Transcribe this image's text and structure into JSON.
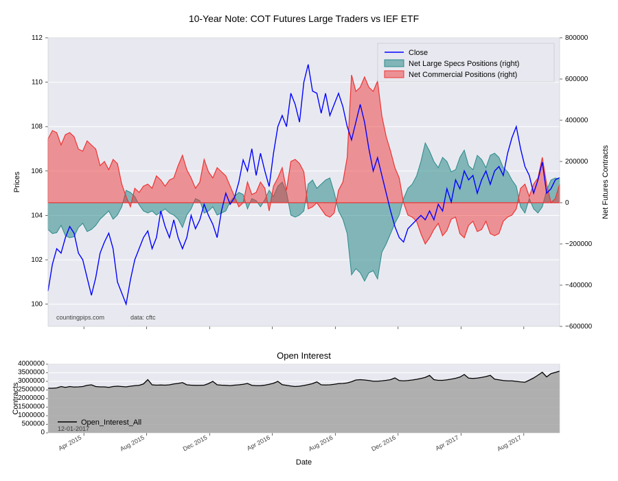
{
  "main_chart": {
    "title": "10-Year Note: COT Futures Large Traders vs IEF ETF",
    "type": "line+area",
    "background_color": "#e8e9f0",
    "grid_color": "#ffffff",
    "left_axis": {
      "label": "Prices",
      "ylim": [
        99,
        112
      ],
      "yticks": [
        100,
        102,
        104,
        106,
        108,
        110,
        112
      ]
    },
    "right_axis": {
      "label": "Net Futures Contracts",
      "ylim": [
        -600000,
        800000
      ],
      "yticks": [
        -600000,
        -400000,
        -200000,
        0,
        200000,
        400000,
        600000,
        800000
      ]
    },
    "x_axis": {
      "labels": [
        "Apr 2015",
        "Aug 2015",
        "Dec 2015",
        "Apr 2016",
        "Aug 2016",
        "Dec 2016",
        "Apr 2017",
        "Aug 2017"
      ]
    },
    "series": {
      "close": {
        "name": "Close",
        "color": "#0000ff",
        "line_width": 1.4,
        "values": [
          100.6,
          101.8,
          102.5,
          102.3,
          103.0,
          103.5,
          103.2,
          102.3,
          102.0,
          101.2,
          100.4,
          101.2,
          102.3,
          102.8,
          103.2,
          102.5,
          101.0,
          100.5,
          100.0,
          101.1,
          102.0,
          102.5,
          103.0,
          103.3,
          102.5,
          103.0,
          104.2,
          103.5,
          103.0,
          103.8,
          103.0,
          102.5,
          103.0,
          104.0,
          103.4,
          103.8,
          104.5,
          104.0,
          103.6,
          103.0,
          104.2,
          105.0,
          104.5,
          104.8,
          105.5,
          106.5,
          106.0,
          107.0,
          105.8,
          106.8,
          106.0,
          105.3,
          106.8,
          108.0,
          108.5,
          108.0,
          109.5,
          109.0,
          108.2,
          110.0,
          110.8,
          109.6,
          109.5,
          108.6,
          109.5,
          108.5,
          109.0,
          109.5,
          108.9,
          108.0,
          107.4,
          108.2,
          109.0,
          108.2,
          107.0,
          106.0,
          106.6,
          105.8,
          105.0,
          104.2,
          103.5,
          103.0,
          102.8,
          103.4,
          103.6,
          103.8,
          104.0,
          103.8,
          104.2,
          103.8,
          104.5,
          104.2,
          105.2,
          104.6,
          105.6,
          105.2,
          106.0,
          105.6,
          105.8,
          105.0,
          105.6,
          106.0,
          105.4,
          106.0,
          106.2,
          105.8,
          106.8,
          107.5,
          108.0,
          107.0,
          106.2,
          105.8,
          105.0,
          105.6,
          106.4,
          105.0,
          105.2,
          105.6,
          105.7
        ]
      },
      "net_large_specs": {
        "name": "Net Large Specs Positions (right)",
        "color": "#2b8a8a",
        "fill_opacity": 0.55,
        "values": [
          -130000,
          -150000,
          -145000,
          -110000,
          -160000,
          -170000,
          -165000,
          -120000,
          -100000,
          -140000,
          -130000,
          -110000,
          -80000,
          -60000,
          -40000,
          -80000,
          -60000,
          -20000,
          60000,
          50000,
          30000,
          -10000,
          -40000,
          -50000,
          -40000,
          -60000,
          -45000,
          -30000,
          -50000,
          -60000,
          -80000,
          -120000,
          -60000,
          -30000,
          20000,
          10000,
          -50000,
          -40000,
          -20000,
          -60000,
          -50000,
          -40000,
          5000,
          30000,
          50000,
          40000,
          -30000,
          20000,
          10000,
          -20000,
          15000,
          60000,
          30000,
          80000,
          100000,
          50000,
          -60000,
          -70000,
          -60000,
          -40000,
          90000,
          110000,
          70000,
          90000,
          110000,
          120000,
          50000,
          -40000,
          -80000,
          -150000,
          -350000,
          -320000,
          -340000,
          -380000,
          -340000,
          -330000,
          -370000,
          -240000,
          -200000,
          -150000,
          -100000,
          -60000,
          20000,
          70000,
          90000,
          130000,
          200000,
          290000,
          250000,
          200000,
          170000,
          220000,
          200000,
          150000,
          160000,
          220000,
          255000,
          180000,
          160000,
          230000,
          210000,
          170000,
          230000,
          240000,
          220000,
          170000,
          150000,
          110000,
          80000,
          -20000,
          -50000,
          20000,
          -30000,
          -50000,
          -20000,
          60000,
          110000,
          120000,
          115000
        ]
      },
      "net_commercial": {
        "name": "Net Commercial Positions (right)",
        "color": "#ee3333",
        "fill_opacity": 0.48,
        "values": [
          310000,
          350000,
          340000,
          280000,
          330000,
          340000,
          320000,
          260000,
          250000,
          300000,
          280000,
          260000,
          180000,
          200000,
          160000,
          210000,
          190000,
          90000,
          30000,
          -20000,
          70000,
          50000,
          80000,
          90000,
          70000,
          130000,
          110000,
          80000,
          110000,
          120000,
          180000,
          230000,
          160000,
          120000,
          70000,
          100000,
          210000,
          150000,
          120000,
          170000,
          150000,
          130000,
          80000,
          30000,
          -20000,
          0,
          100000,
          40000,
          50000,
          100000,
          70000,
          -40000,
          80000,
          120000,
          170000,
          60000,
          200000,
          210000,
          190000,
          150000,
          -30000,
          -20000,
          0,
          -30000,
          -60000,
          -70000,
          -50000,
          60000,
          100000,
          220000,
          620000,
          540000,
          560000,
          610000,
          560000,
          540000,
          590000,
          420000,
          320000,
          250000,
          170000,
          120000,
          0,
          -60000,
          -70000,
          -90000,
          -150000,
          -200000,
          -170000,
          -130000,
          -100000,
          -160000,
          -135000,
          -80000,
          -70000,
          -150000,
          -170000,
          -110000,
          -90000,
          -140000,
          -130000,
          -90000,
          -150000,
          -160000,
          -150000,
          -90000,
          -70000,
          -60000,
          -30000,
          70000,
          90000,
          30000,
          90000,
          120000,
          220000,
          90000,
          0,
          20000,
          90000
        ]
      }
    },
    "annotations": {
      "source_left": "countingpips.com",
      "source_right": "data: cftc"
    },
    "legend": {
      "items": [
        "Close",
        "Net Large Specs Positions (right)",
        "Net Commercial Positions (right)"
      ]
    }
  },
  "sub_chart": {
    "title": "Open Interest",
    "type": "area",
    "background_color": "#e8e9f0",
    "fill_color": "#a0a0a0",
    "line_color": "#000000",
    "left_axis": {
      "label": "Contracts",
      "ylim": [
        0,
        4000000
      ],
      "yticks": [
        0,
        500000,
        1000000,
        1500000,
        2000000,
        2500000,
        3000000,
        3500000,
        4000000
      ]
    },
    "x_axis": {
      "label": "Date",
      "labels": [
        "Apr 2015",
        "Aug 2015",
        "Dec 2015",
        "Apr 2016",
        "Aug 2016",
        "Dec 2016",
        "Apr 2017",
        "Aug 2017"
      ]
    },
    "series": {
      "open_interest": {
        "name": "Open_Interest_All",
        "values": [
          2600000,
          2600000,
          2620000,
          2700000,
          2650000,
          2700000,
          2670000,
          2680000,
          2700000,
          2770000,
          2800000,
          2700000,
          2680000,
          2680000,
          2650000,
          2700000,
          2720000,
          2700000,
          2680000,
          2720000,
          2750000,
          2770000,
          2850000,
          3100000,
          2800000,
          2780000,
          2790000,
          2780000,
          2800000,
          2850000,
          2880000,
          2930000,
          2800000,
          2780000,
          2770000,
          2770000,
          2780000,
          2870000,
          3000000,
          2800000,
          2780000,
          2770000,
          2750000,
          2780000,
          2800000,
          2830000,
          2880000,
          2770000,
          2750000,
          2750000,
          2780000,
          2830000,
          2890000,
          3000000,
          2810000,
          2770000,
          2730000,
          2700000,
          2720000,
          2760000,
          2810000,
          2870000,
          2970000,
          2800000,
          2790000,
          2800000,
          2830000,
          2870000,
          2880000,
          2910000,
          2980000,
          3080000,
          3100000,
          3080000,
          3050000,
          3010000,
          3010000,
          3030000,
          3060000,
          3100000,
          3200000,
          3050000,
          3030000,
          3050000,
          3080000,
          3120000,
          3170000,
          3230000,
          3350000,
          3100000,
          3060000,
          3060000,
          3090000,
          3130000,
          3180000,
          3250000,
          3400000,
          3190000,
          3170000,
          3190000,
          3230000,
          3280000,
          3350000,
          3130000,
          3090000,
          3050000,
          3030000,
          3030000,
          3000000,
          2970000,
          2950000,
          3070000,
          3200000,
          3360000,
          3530000,
          3260000,
          3450000,
          3520000,
          3600000
        ]
      }
    },
    "legend_item": "Open_Interest_All",
    "date_note": "12-01-2017"
  }
}
